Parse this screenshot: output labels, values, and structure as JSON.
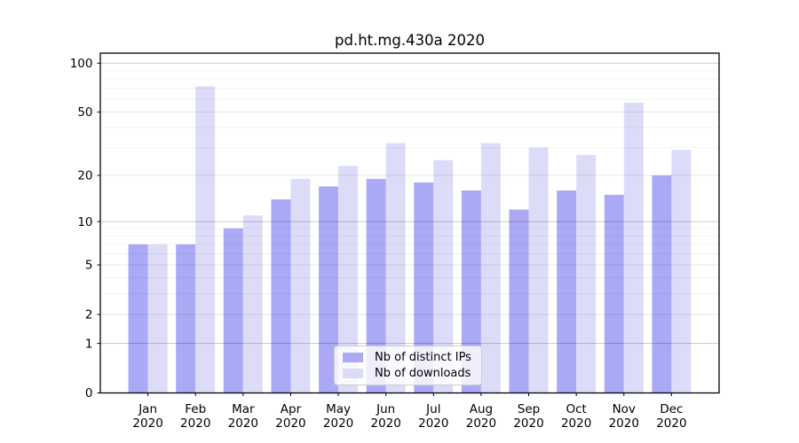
{
  "chart_data": {
    "type": "bar",
    "title": "pd.ht.mg.430a 2020",
    "categories": [
      "Jan",
      "Feb",
      "Mar",
      "Apr",
      "May",
      "Jun",
      "Jul",
      "Aug",
      "Sep",
      "Oct",
      "Nov",
      "Dec"
    ],
    "category_year": "2020",
    "series": [
      {
        "name": "Nb of distinct IPs",
        "key": "distinct-ips",
        "color": "#a9a9f6",
        "values": [
          7,
          7,
          9,
          14,
          17,
          19,
          18,
          16,
          12,
          16,
          15,
          20
        ]
      },
      {
        "name": "Nb of downloads",
        "key": "downloads",
        "color": "#dcdcf9",
        "values": [
          7,
          72,
          11,
          19,
          23,
          32,
          25,
          32,
          30,
          27,
          57,
          29
        ]
      }
    ],
    "yscale": "log10(1+x)",
    "yticks": [
      0,
      1,
      2,
      5,
      10,
      20,
      50,
      100
    ],
    "decade_gridlines": [
      1,
      10,
      100
    ],
    "minor_gridlines": [
      3,
      4,
      6,
      7,
      8,
      9,
      30,
      40,
      60,
      70,
      80,
      90
    ],
    "ylim": [
      0,
      115
    ],
    "grid": true,
    "legend_position": "lower center"
  }
}
